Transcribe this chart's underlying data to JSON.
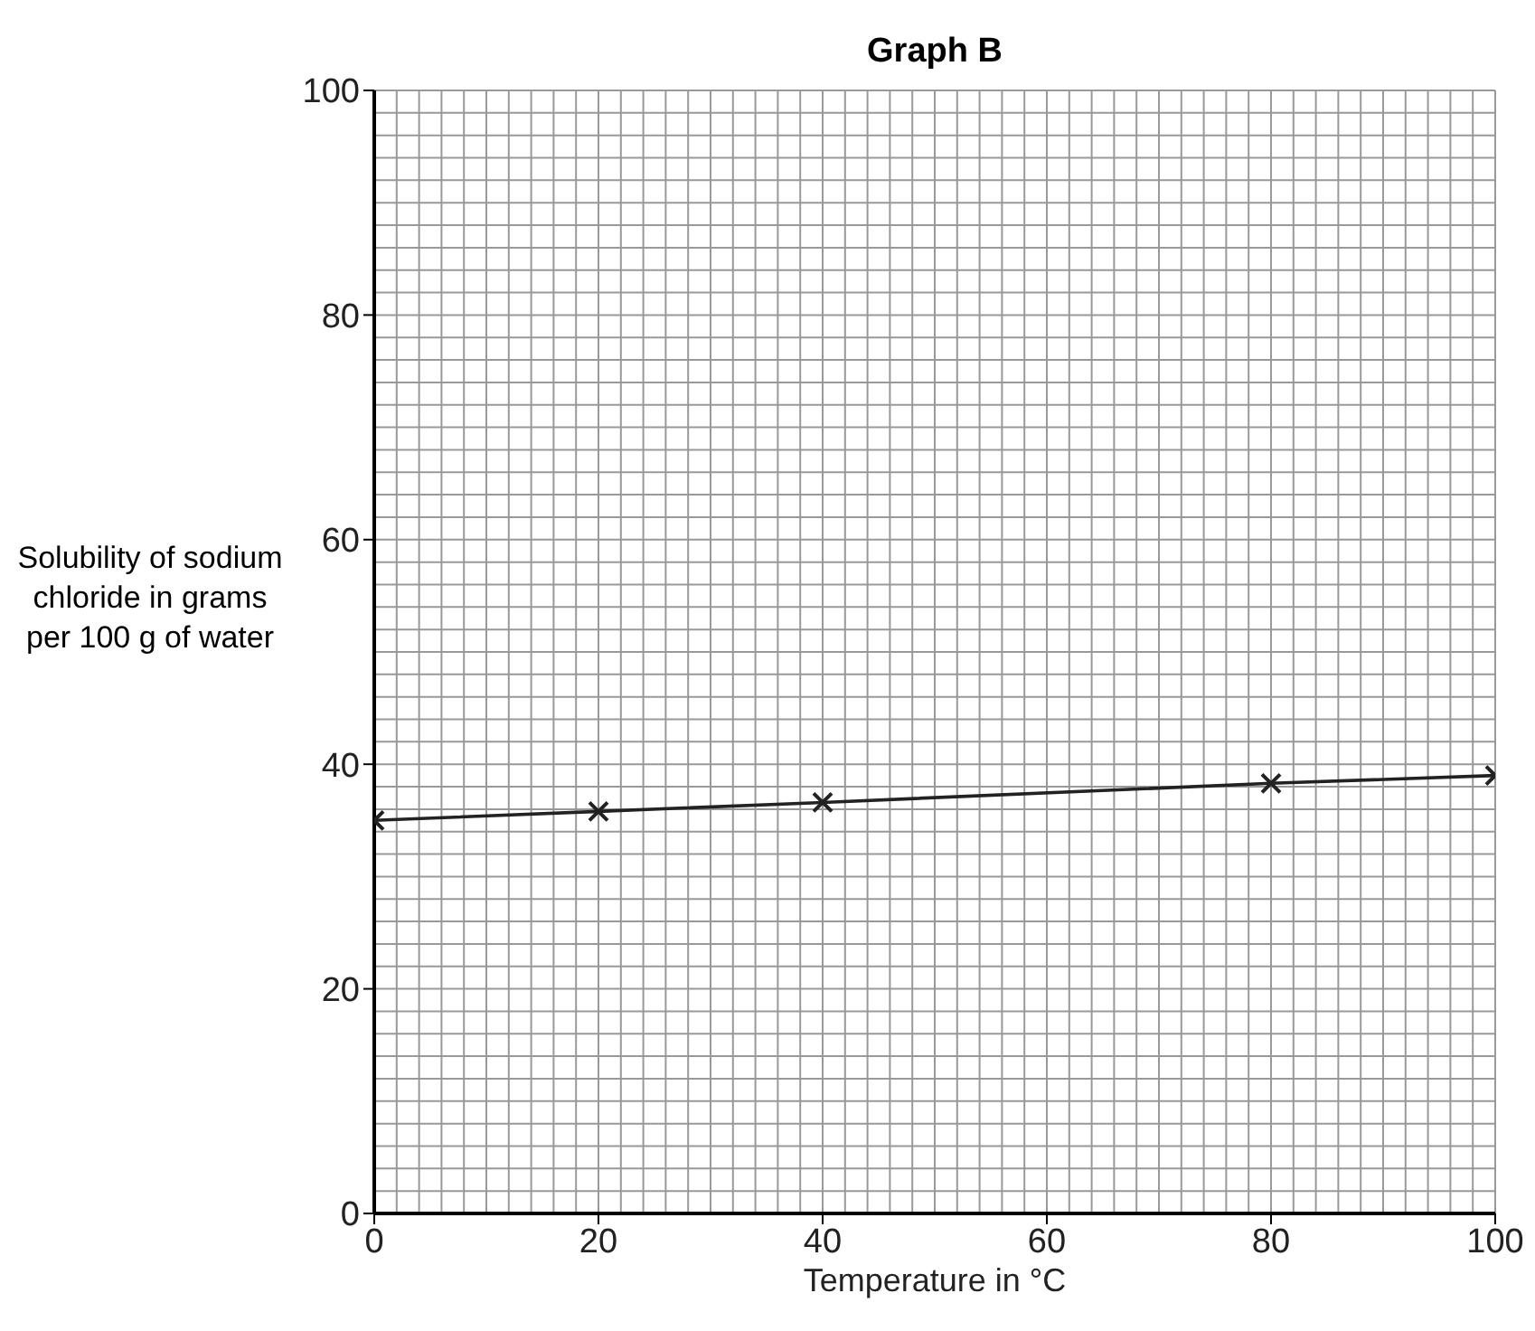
{
  "chart_data": {
    "type": "line",
    "title": "Graph B",
    "xlabel": "Temperature in °C",
    "ylabel": "Solubility of sodium chloride in grams per 100 g of water",
    "x": [
      0,
      20,
      40,
      80,
      100
    ],
    "series": [
      {
        "color": "#222222",
        "values": [
          35,
          35.8,
          36.6,
          38.3,
          39
        ]
      }
    ],
    "xlim": [
      0,
      100
    ],
    "xticks": [
      0,
      20,
      40,
      60,
      80,
      100
    ],
    "ylim": [
      0,
      100
    ],
    "yticks": [
      0,
      20,
      40,
      60,
      80,
      100
    ],
    "grid": true,
    "marker": "cross",
    "line_style": "solid"
  }
}
